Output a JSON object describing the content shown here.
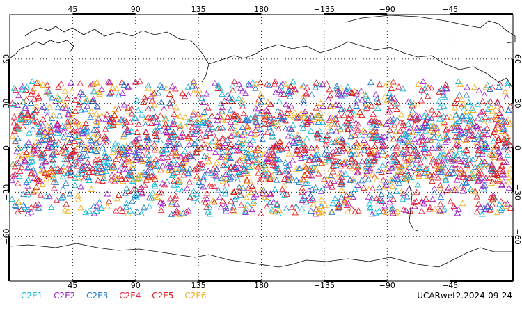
{
  "map": {
    "lon_min": 0,
    "lon_max": 360,
    "lat_min": -90,
    "lat_max": 90,
    "top_lon_ticks": [
      "45",
      "90",
      "135",
      "180",
      "−135",
      "−90",
      "−45"
    ],
    "bottom_lon_ticks": [
      "45",
      "90",
      "135",
      "180",
      "−135",
      "−90",
      "−45"
    ],
    "lat_ticks_left": [
      "60",
      "30",
      "0",
      "−30",
      "−60"
    ],
    "lat_ticks_right": [
      "60",
      "30",
      "0",
      "−30",
      "−60"
    ],
    "lat_tick_values": [
      60,
      30,
      0,
      -30,
      -60
    ],
    "lon_tick_values": [
      45,
      90,
      135,
      180,
      225,
      270,
      315
    ],
    "grid": "dotted",
    "observation_lat_range": [
      -45,
      45
    ],
    "marker": "open-triangle"
  },
  "legend": {
    "items": [
      {
        "label": "C2E1",
        "color": "#10b8d8"
      },
      {
        "label": "C2E2",
        "color": "#a020c8"
      },
      {
        "label": "C2E3",
        "color": "#1e7ad0"
      },
      {
        "label": "C2E4",
        "color": "#e8203c"
      },
      {
        "label": "C2E5",
        "color": "#d81818"
      },
      {
        "label": "C2E6",
        "color": "#f0b020"
      }
    ]
  },
  "product_label": "UCARwet2.2024-09-24"
}
